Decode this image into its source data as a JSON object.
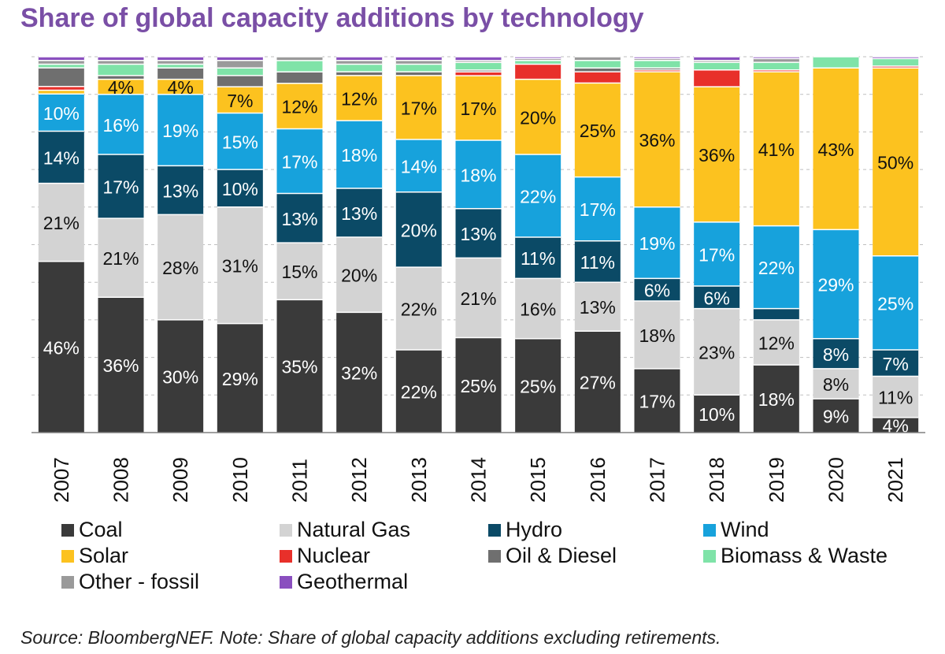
{
  "title": "Share of global capacity additions by technology",
  "source": "Source: BloombergNEF. Note: Share of global capacity additions excluding retirements.",
  "chart_data": {
    "type": "bar",
    "stacked": true,
    "title": "Share of global capacity additions by technology",
    "categories": [
      "2007",
      "2008",
      "2009",
      "2010",
      "2011",
      "2012",
      "2013",
      "2014",
      "2015",
      "2016",
      "2017",
      "2018",
      "2019",
      "2020",
      "2021"
    ],
    "ylim": [
      0,
      100
    ],
    "grid": true,
    "legend_position": "bottom",
    "series": [
      {
        "name": "Coal",
        "color": "#3a3a3a",
        "label_color": "#ffffff",
        "values": [
          46,
          36,
          30,
          29,
          35,
          32,
          22,
          25,
          25,
          27,
          17,
          10,
          18,
          9,
          4
        ],
        "labels": [
          "46%",
          "36%",
          "30%",
          "29%",
          "35%",
          "32%",
          "22%",
          "25%",
          "25%",
          "27%",
          "17%",
          "10%",
          "18%",
          "9%",
          "4%"
        ]
      },
      {
        "name": "Natural Gas",
        "color": "#d3d3d3",
        "label_color": "#111111",
        "values": [
          21,
          21,
          28,
          31,
          15,
          20,
          22,
          21,
          16,
          13,
          18,
          23,
          12,
          8,
          11
        ],
        "labels": [
          "21%",
          "21%",
          "28%",
          "31%",
          "15%",
          "20%",
          "22%",
          "21%",
          "16%",
          "13%",
          "18%",
          "23%",
          "12%",
          "8%",
          "11%"
        ]
      },
      {
        "name": "Hydro",
        "color": "#0b4a66",
        "label_color": "#ffffff",
        "values": [
          14,
          17,
          13,
          10,
          13,
          13,
          20,
          13,
          11,
          11,
          6,
          6,
          3,
          8,
          7
        ],
        "labels": [
          "14%",
          "17%",
          "13%",
          "10%",
          "13%",
          "13%",
          "20%",
          "13%",
          "11%",
          "11%",
          "6%",
          "6%",
          "",
          "8%",
          "7%"
        ]
      },
      {
        "name": "Wind",
        "color": "#17a2dc",
        "label_color": "#ffffff",
        "values": [
          10,
          16,
          19,
          15,
          17,
          18,
          14,
          18,
          22,
          17,
          19,
          17,
          22,
          29,
          25
        ],
        "labels": [
          "10%",
          "16%",
          "19%",
          "15%",
          "17%",
          "18%",
          "14%",
          "18%",
          "22%",
          "17%",
          "19%",
          "17%",
          "22%",
          "29%",
          "25%"
        ]
      },
      {
        "name": "Solar",
        "color": "#fcc21f",
        "label_color": "#111111",
        "values": [
          1,
          4,
          4,
          7,
          12,
          12,
          17,
          17,
          20,
          25,
          36,
          36,
          41,
          43,
          50
        ],
        "labels": [
          "",
          "4%",
          "4%",
          "7%",
          "12%",
          "12%",
          "17%",
          "17%",
          "20%",
          "25%",
          "36%",
          "36%",
          "41%",
          "43%",
          "50%"
        ]
      },
      {
        "name": "Nuclear",
        "color": "#e8302a",
        "label_color": "#ffffff",
        "values": [
          1,
          0,
          0,
          0,
          0,
          0,
          0,
          1,
          4,
          3,
          0.5,
          4.5,
          0.5,
          0,
          0.5
        ],
        "labels": []
      },
      {
        "name": "Oil & Diesel",
        "color": "#6f6f6f",
        "label_color": "#ffffff",
        "values": [
          5,
          1,
          3,
          3,
          3,
          1,
          1,
          0.5,
          0,
          1,
          0.5,
          0,
          0,
          0,
          0
        ],
        "labels": []
      },
      {
        "name": "Biomass & Waste",
        "color": "#7fe3a8",
        "label_color": "#111111",
        "values": [
          1,
          3,
          1,
          2,
          3,
          2,
          2,
          2,
          1,
          2,
          2,
          2,
          2,
          3,
          2
        ],
        "labels": []
      },
      {
        "name": "Other - fossil",
        "color": "#9a9a9a",
        "label_color": "#111111",
        "values": [
          1,
          1,
          1,
          2,
          1,
          1,
          1,
          0.5,
          0.5,
          1,
          0.5,
          0.5,
          1,
          0,
          0
        ],
        "labels": []
      },
      {
        "name": "Geothermal",
        "color": "#8a4fbf",
        "label_color": "#ffffff",
        "values": [
          1,
          1,
          1,
          1,
          0,
          1,
          1,
          1,
          0.5,
          0,
          0.5,
          1,
          0.5,
          0,
          0.5
        ],
        "labels": []
      }
    ]
  }
}
